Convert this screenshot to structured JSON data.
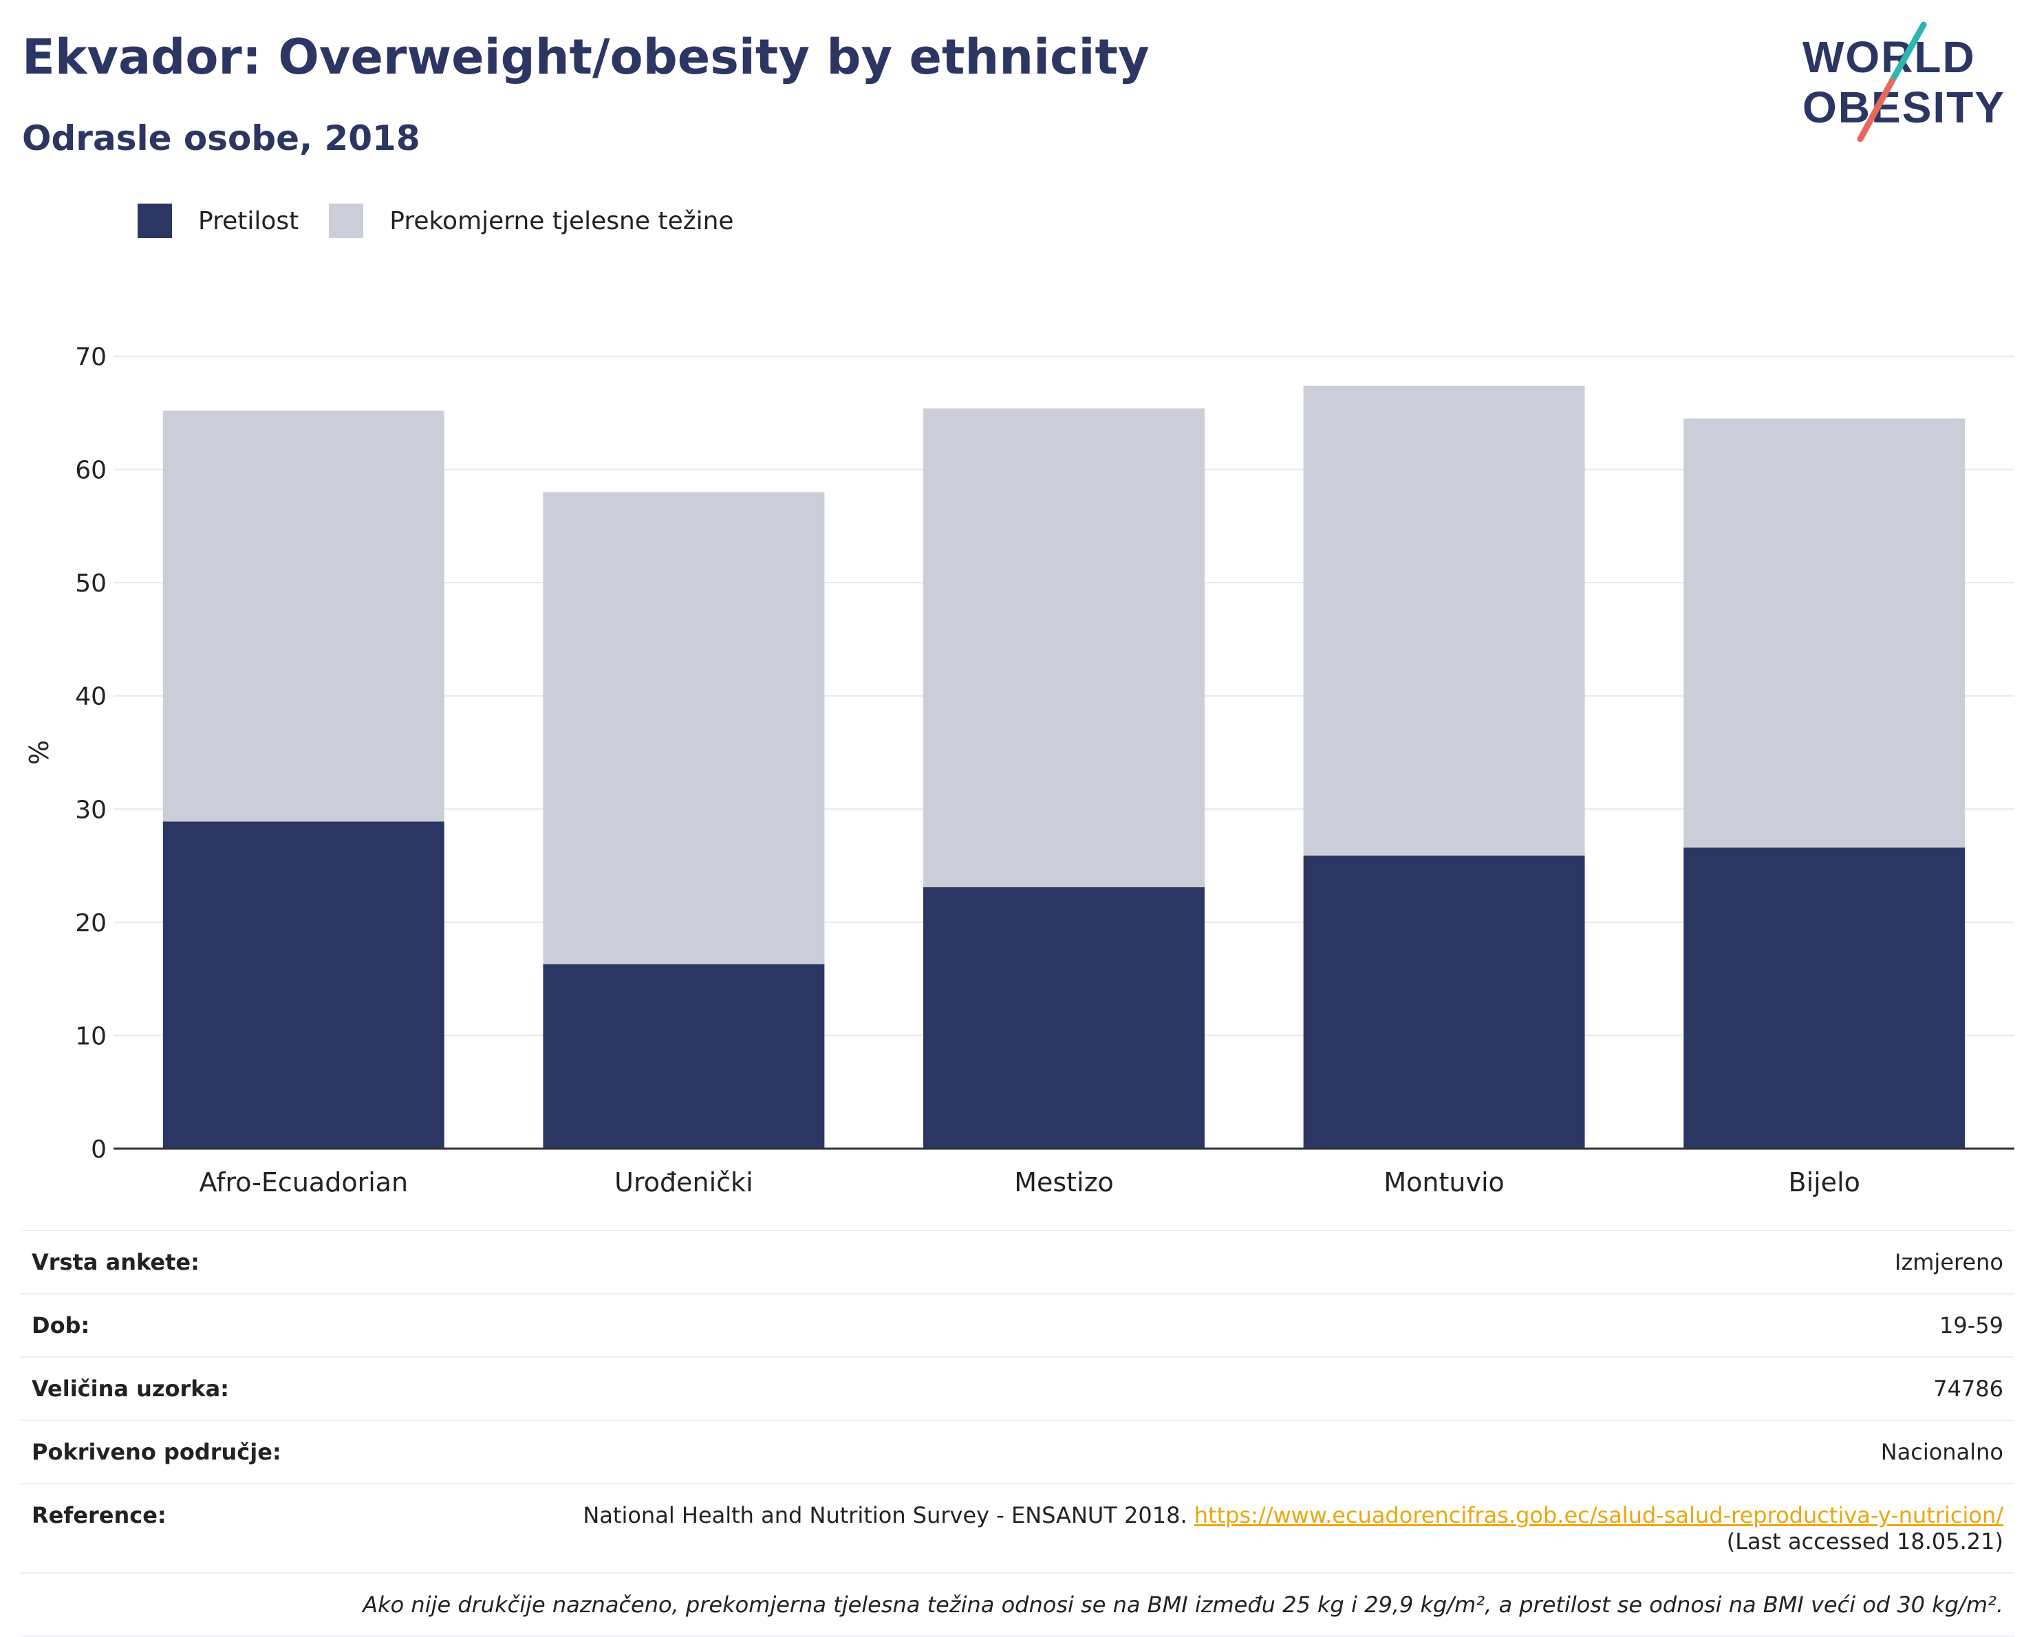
{
  "title": "Ekvador: Overweight/obesity by ethnicity",
  "subtitle": "Odrasle osobe, 2018",
  "logo": {
    "line1": "WORLD",
    "line2": "OBESITY"
  },
  "legend": {
    "obesity": "Pretilost",
    "overweight": "Prekomjerne tjelesne težine"
  },
  "colors": {
    "obesity": "#2b3663",
    "overweight": "#cbcdd8",
    "accent_teal": "#2fb6b0",
    "accent_red": "#e8685a",
    "link": "#e9a70e"
  },
  "chart_data": {
    "type": "bar",
    "stacked": true,
    "categories": [
      "Afro-Ecuadorian",
      "Urođenički",
      "Mestizo",
      "Montuvio",
      "Bijelo"
    ],
    "series": [
      {
        "name": "Pretilost",
        "values": [
          28.9,
          16.3,
          23.1,
          25.9,
          26.6
        ]
      },
      {
        "name": "Prekomjerne tjelesne težine",
        "values": [
          36.3,
          41.7,
          42.3,
          41.5,
          37.9
        ]
      }
    ],
    "ylabel": "%",
    "ylim": [
      0,
      70
    ],
    "yticks": [
      0,
      10,
      20,
      30,
      40,
      50,
      60,
      70
    ],
    "grid": true,
    "legend_position": "top-left"
  },
  "info": {
    "survey_type": {
      "label": "Vrsta ankete:",
      "value": "Izmjereno"
    },
    "age": {
      "label": "Dob:",
      "value": "19-59"
    },
    "sample_size": {
      "label": "Veličina uzorka:",
      "value": "74786"
    },
    "area": {
      "label": "Pokriveno područje:",
      "value": "Nacionalno"
    },
    "reference": {
      "label": "Reference:",
      "text": "National Health and Nutrition Survey - ENSANUT 2018.",
      "link": "https://www.ecuadorencifras.gob.ec/salud-salud-reproductiva-y-nutricion/",
      "accessed": "(Last accessed 18.05.21)"
    },
    "note": "Ako nije drukčije naznačeno, prekomjerna tjelesna težina odnosi se na BMI između 25 kg i 29,9 kg/m², a pretilost se odnosi na BMI veći od 30 kg/m²."
  }
}
